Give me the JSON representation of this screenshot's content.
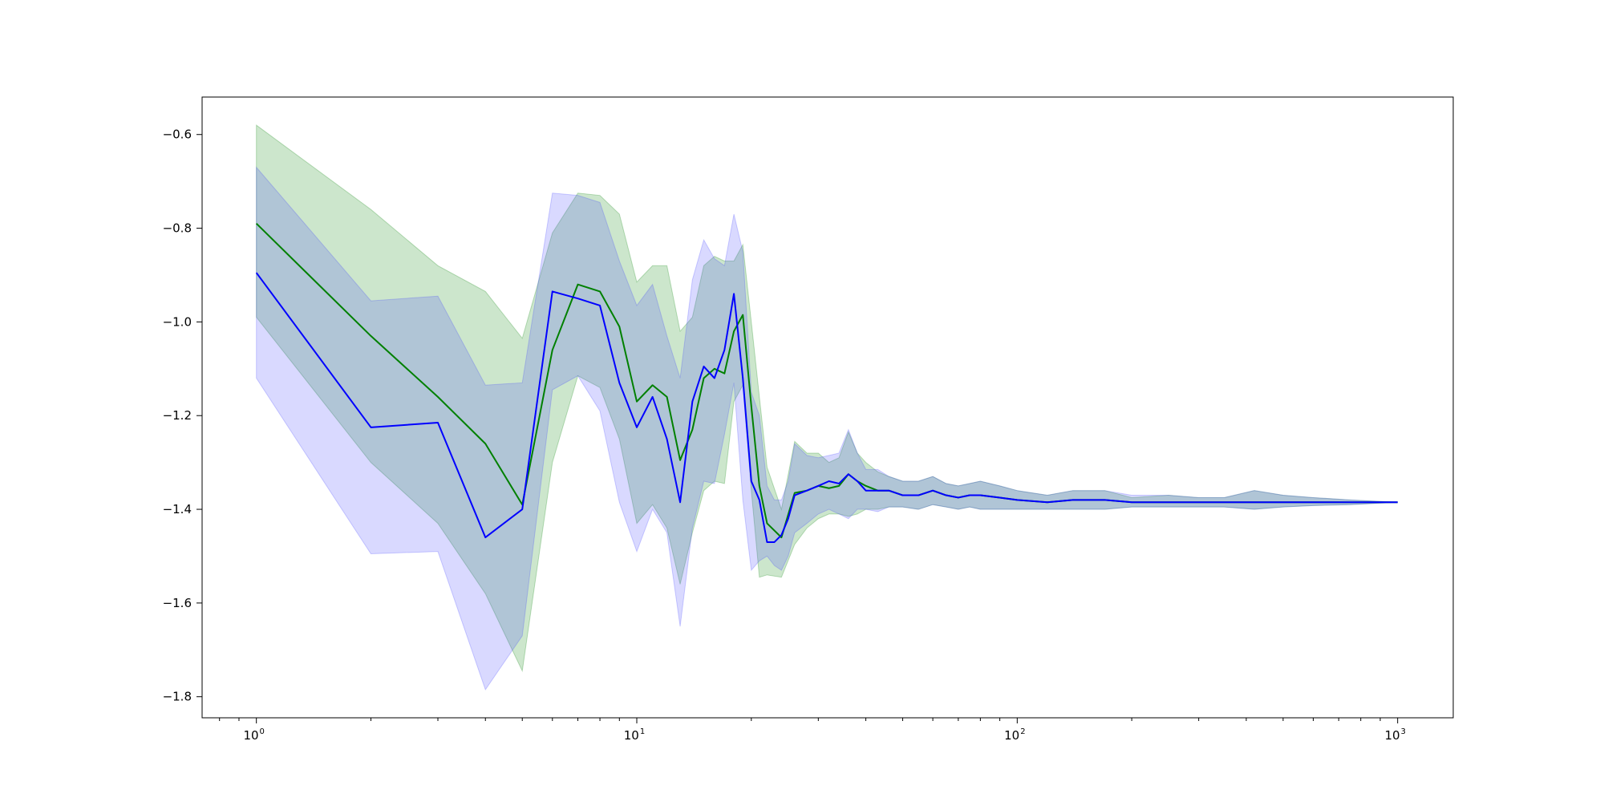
{
  "chart_data": {
    "type": "line",
    "title": "",
    "xlabel": "",
    "ylabel": "",
    "xscale": "log",
    "xlim": [
      0.72,
      1400
    ],
    "ylim": [
      -1.845,
      -0.52
    ],
    "grid": false,
    "legend": "none",
    "x_ticks": [
      {
        "base": "10",
        "exp": "0",
        "value": 1
      },
      {
        "base": "10",
        "exp": "1",
        "value": 10
      },
      {
        "base": "10",
        "exp": "2",
        "value": 100
      },
      {
        "base": "10",
        "exp": "3",
        "value": 1000
      }
    ],
    "y_ticks": [
      {
        "label": "−0.6",
        "value": -0.6
      },
      {
        "label": "−0.8",
        "value": -0.8
      },
      {
        "label": "−1.0",
        "value": -1.0
      },
      {
        "label": "−1.2",
        "value": -1.2
      },
      {
        "label": "−1.4",
        "value": -1.4
      },
      {
        "label": "−1.6",
        "value": -1.6
      },
      {
        "label": "−1.8",
        "value": -1.8
      }
    ],
    "series": [
      {
        "color": "#008000",
        "band_color": "#008000",
        "points": [
          [
            1,
            -0.79,
            -0.58,
            -0.99
          ],
          [
            2,
            -1.03,
            -0.76,
            -1.3
          ],
          [
            3,
            -1.16,
            -0.88,
            -1.43
          ],
          [
            4,
            -1.26,
            -0.935,
            -1.58
          ],
          [
            5,
            -1.39,
            -1.035,
            -1.745
          ],
          [
            6,
            -1.06,
            -0.81,
            -1.3
          ],
          [
            7,
            -0.92,
            -0.725,
            -1.115
          ],
          [
            8,
            -0.935,
            -0.73,
            -1.14
          ],
          [
            9,
            -1.01,
            -0.77,
            -1.25
          ],
          [
            10,
            -1.17,
            -0.915,
            -1.43
          ],
          [
            11,
            -1.135,
            -0.88,
            -1.39
          ],
          [
            12,
            -1.16,
            -0.88,
            -1.44
          ],
          [
            13,
            -1.295,
            -1.02,
            -1.56
          ],
          [
            14,
            -1.23,
            -0.99,
            -1.45
          ],
          [
            15,
            -1.12,
            -0.88,
            -1.36
          ],
          [
            16,
            -1.1,
            -0.86,
            -1.34
          ],
          [
            17,
            -1.11,
            -0.87,
            -1.345
          ],
          [
            18,
            -1.02,
            -0.87,
            -1.17
          ],
          [
            19,
            -0.985,
            -0.835,
            -1.135
          ],
          [
            20,
            -1.18,
            -1.0,
            -1.36
          ],
          [
            21,
            -1.35,
            -1.16,
            -1.545
          ],
          [
            22,
            -1.43,
            -1.31,
            -1.54
          ],
          [
            24,
            -1.46,
            -1.4,
            -1.545
          ],
          [
            26,
            -1.365,
            -1.255,
            -1.475
          ],
          [
            28,
            -1.36,
            -1.28,
            -1.44
          ],
          [
            30,
            -1.35,
            -1.28,
            -1.42
          ],
          [
            32,
            -1.355,
            -1.3,
            -1.41
          ],
          [
            34,
            -1.35,
            -1.29,
            -1.41
          ],
          [
            36,
            -1.325,
            -1.235,
            -1.415
          ],
          [
            38,
            -1.34,
            -1.28,
            -1.41
          ],
          [
            40,
            -1.35,
            -1.3,
            -1.4
          ],
          [
            43,
            -1.36,
            -1.32,
            -1.4
          ],
          [
            46,
            -1.36,
            -1.33,
            -1.395
          ],
          [
            50,
            -1.37,
            -1.34,
            -1.395
          ],
          [
            55,
            -1.37,
            -1.34,
            -1.4
          ],
          [
            60,
            -1.36,
            -1.33,
            -1.39
          ],
          [
            65,
            -1.37,
            -1.345,
            -1.395
          ],
          [
            70,
            -1.375,
            -1.35,
            -1.4
          ],
          [
            75,
            -1.37,
            -1.345,
            -1.395
          ],
          [
            80,
            -1.37,
            -1.34,
            -1.4
          ],
          [
            90,
            -1.375,
            -1.35,
            -1.4
          ],
          [
            100,
            -1.38,
            -1.36,
            -1.4
          ],
          [
            120,
            -1.385,
            -1.37,
            -1.4
          ],
          [
            140,
            -1.38,
            -1.36,
            -1.4
          ],
          [
            170,
            -1.38,
            -1.36,
            -1.4
          ],
          [
            200,
            -1.385,
            -1.375,
            -1.395
          ],
          [
            250,
            -1.385,
            -1.37,
            -1.395
          ],
          [
            300,
            -1.385,
            -1.375,
            -1.395
          ],
          [
            350,
            -1.385,
            -1.375,
            -1.395
          ],
          [
            420,
            -1.385,
            -1.36,
            -1.4
          ],
          [
            500,
            -1.385,
            -1.37,
            -1.395
          ],
          [
            600,
            -1.385,
            -1.375,
            -1.392
          ],
          [
            750,
            -1.385,
            -1.38,
            -1.39
          ],
          [
            1000,
            -1.385,
            -1.385,
            -1.385
          ]
        ]
      },
      {
        "color": "#0000ff",
        "band_color": "#4040ff",
        "points": [
          [
            1,
            -0.895,
            -0.67,
            -1.12
          ],
          [
            2,
            -1.225,
            -0.955,
            -1.495
          ],
          [
            3,
            -1.215,
            -0.945,
            -1.49
          ],
          [
            4,
            -1.46,
            -1.135,
            -1.785
          ],
          [
            5,
            -1.4,
            -1.13,
            -1.67
          ],
          [
            6,
            -0.935,
            -0.725,
            -1.145
          ],
          [
            7,
            -0.95,
            -0.73,
            -1.115
          ],
          [
            8,
            -0.965,
            -0.745,
            -1.19
          ],
          [
            9,
            -1.13,
            -0.87,
            -1.385
          ],
          [
            10,
            -1.225,
            -0.965,
            -1.49
          ],
          [
            11,
            -1.16,
            -0.92,
            -1.4
          ],
          [
            12,
            -1.25,
            -1.03,
            -1.45
          ],
          [
            13,
            -1.385,
            -1.12,
            -1.65
          ],
          [
            14,
            -1.17,
            -0.91,
            -1.44
          ],
          [
            15,
            -1.095,
            -0.825,
            -1.34
          ],
          [
            16,
            -1.12,
            -0.865,
            -1.345
          ],
          [
            17,
            -1.06,
            -0.88,
            -1.24
          ],
          [
            18,
            -0.94,
            -0.77,
            -1.13
          ],
          [
            19,
            -1.12,
            -0.85,
            -1.38
          ],
          [
            20,
            -1.34,
            -1.15,
            -1.53
          ],
          [
            21,
            -1.38,
            -1.2,
            -1.51
          ],
          [
            22,
            -1.47,
            -1.35,
            -1.5
          ],
          [
            23,
            -1.47,
            -1.38,
            -1.52
          ],
          [
            24,
            -1.455,
            -1.38,
            -1.53
          ],
          [
            25,
            -1.42,
            -1.34,
            -1.5
          ],
          [
            26,
            -1.37,
            -1.26,
            -1.45
          ],
          [
            28,
            -1.36,
            -1.285,
            -1.43
          ],
          [
            30,
            -1.35,
            -1.29,
            -1.41
          ],
          [
            32,
            -1.34,
            -1.285,
            -1.4
          ],
          [
            34,
            -1.345,
            -1.28,
            -1.41
          ],
          [
            36,
            -1.325,
            -1.23,
            -1.42
          ],
          [
            38,
            -1.34,
            -1.28,
            -1.4
          ],
          [
            40,
            -1.36,
            -1.315,
            -1.4
          ],
          [
            43,
            -1.36,
            -1.315,
            -1.405
          ],
          [
            46,
            -1.36,
            -1.33,
            -1.395
          ],
          [
            50,
            -1.37,
            -1.34,
            -1.395
          ],
          [
            55,
            -1.37,
            -1.34,
            -1.4
          ],
          [
            60,
            -1.36,
            -1.33,
            -1.39
          ],
          [
            65,
            -1.37,
            -1.345,
            -1.395
          ],
          [
            70,
            -1.375,
            -1.35,
            -1.4
          ],
          [
            75,
            -1.37,
            -1.345,
            -1.395
          ],
          [
            80,
            -1.37,
            -1.34,
            -1.4
          ],
          [
            90,
            -1.375,
            -1.35,
            -1.4
          ],
          [
            100,
            -1.38,
            -1.36,
            -1.4
          ],
          [
            120,
            -1.385,
            -1.37,
            -1.4
          ],
          [
            140,
            -1.38,
            -1.36,
            -1.4
          ],
          [
            170,
            -1.38,
            -1.36,
            -1.4
          ],
          [
            200,
            -1.385,
            -1.37,
            -1.395
          ],
          [
            250,
            -1.385,
            -1.37,
            -1.395
          ],
          [
            300,
            -1.385,
            -1.375,
            -1.395
          ],
          [
            350,
            -1.385,
            -1.375,
            -1.395
          ],
          [
            420,
            -1.385,
            -1.36,
            -1.4
          ],
          [
            500,
            -1.385,
            -1.37,
            -1.395
          ],
          [
            600,
            -1.385,
            -1.375,
            -1.392
          ],
          [
            750,
            -1.385,
            -1.38,
            -1.39
          ],
          [
            1000,
            -1.385,
            -1.385,
            -1.385
          ]
        ]
      }
    ]
  }
}
